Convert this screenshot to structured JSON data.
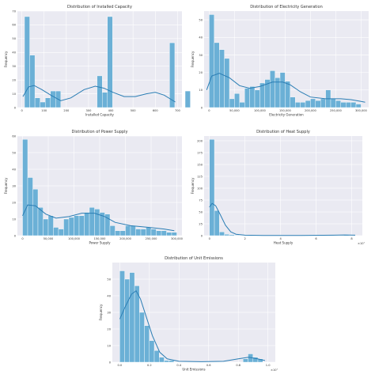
{
  "colors": {
    "plot_bg": "#eaeaf2",
    "grid": "#ffffff",
    "bar_fill": "#6bb0d6",
    "bar_edge": "#ffffff",
    "kde_line": "#2a7db4",
    "text": "#333333"
  },
  "chart_data": [
    {
      "type": "bar",
      "title": "Distribution of Installed Capacity",
      "xlabel": "Installed Capacity",
      "ylabel": "Frequency",
      "xlim": [
        -20,
        720
      ],
      "ylim": [
        0,
        70
      ],
      "xticks": [
        0,
        100,
        200,
        300,
        400,
        500,
        600,
        700
      ],
      "xtick_labels": [
        "0",
        "100",
        "200",
        "300",
        "400",
        "500",
        "600",
        "700"
      ],
      "yticks": [
        0,
        10,
        20,
        30,
        40,
        50,
        60,
        70
      ],
      "ytick_labels": [
        "0",
        "10",
        "20",
        "30",
        "40",
        "50",
        "60",
        "70"
      ],
      "grid": true,
      "bin_start": 12,
      "bin_width": 23.3,
      "values": [
        66,
        38,
        7,
        4,
        7,
        12,
        12,
        0,
        0,
        0,
        0,
        0,
        0,
        0,
        23,
        11,
        66,
        0,
        0,
        0,
        0,
        0,
        0,
        0,
        0,
        0,
        0,
        0,
        47,
        0,
        0,
        12
      ],
      "kde": [
        [
          5,
          8
        ],
        [
          30,
          15
        ],
        [
          55,
          16
        ],
        [
          90,
          13
        ],
        [
          130,
          9
        ],
        [
          175,
          5
        ],
        [
          220,
          7
        ],
        [
          280,
          13
        ],
        [
          330,
          15.5
        ],
        [
          370,
          14
        ],
        [
          410,
          11
        ],
        [
          460,
          8
        ],
        [
          510,
          8
        ],
        [
          560,
          10
        ],
        [
          600,
          11
        ],
        [
          640,
          9
        ],
        [
          670,
          6
        ],
        [
          690,
          4
        ]
      ]
    },
    {
      "type": "bar",
      "title": "Distribution of Electricity Generation",
      "xlabel": "Electricity Generation",
      "ylabel": "Frequency",
      "xlim": [
        -10000,
        315000
      ],
      "ylim": [
        0,
        55
      ],
      "xticks": [
        0,
        50000,
        100000,
        150000,
        200000,
        250000,
        300000
      ],
      "xtick_labels": [
        "0",
        "50,000",
        "100,000",
        "150,000",
        "200,000",
        "250,000",
        "300,000"
      ],
      "yticks": [
        0,
        10,
        20,
        30,
        40,
        50
      ],
      "ytick_labels": [
        "0",
        "10",
        "20",
        "30",
        "40",
        "50"
      ],
      "grid": true,
      "bin_start": 0,
      "bin_width": 10000,
      "values": [
        53,
        37,
        33,
        28,
        5,
        8,
        3,
        11,
        12,
        10,
        14,
        16,
        21,
        17,
        20,
        15,
        6,
        3,
        3,
        4,
        5,
        4,
        5,
        10,
        5,
        4,
        3,
        3,
        3,
        2
      ],
      "kde": [
        [
          -5000,
          10
        ],
        [
          5000,
          18
        ],
        [
          20000,
          19.5
        ],
        [
          40000,
          17
        ],
        [
          60000,
          12.5
        ],
        [
          80000,
          11
        ],
        [
          100000,
          12
        ],
        [
          125000,
          14.5
        ],
        [
          145000,
          14.5
        ],
        [
          160000,
          13
        ],
        [
          180000,
          9
        ],
        [
          200000,
          6
        ],
        [
          230000,
          5
        ],
        [
          260000,
          5
        ],
        [
          280000,
          4.5
        ],
        [
          300000,
          3.5
        ],
        [
          308000,
          3
        ]
      ]
    },
    {
      "type": "bar",
      "title": "Distribution of Power Supply",
      "xlabel": "Power Supply",
      "ylabel": "Frequency",
      "xlim": [
        -10000,
        310000
      ],
      "ylim": [
        0,
        60
      ],
      "xticks": [
        0,
        50000,
        100000,
        150000,
        200000,
        250000,
        300000
      ],
      "xtick_labels": [
        "0",
        "50,000",
        "100,000",
        "150,000",
        "200,000",
        "250,000",
        "300,000"
      ],
      "yticks": [
        0,
        10,
        20,
        30,
        40,
        50,
        60
      ],
      "ytick_labels": [
        "0",
        "10",
        "20",
        "30",
        "40",
        "50",
        "60"
      ],
      "grid": true,
      "bin_start": 0,
      "bin_width": 10000,
      "values": [
        58,
        35,
        28,
        17,
        10,
        12,
        5,
        4,
        10,
        11,
        12,
        12,
        14,
        17,
        16,
        14,
        13,
        6,
        3,
        3,
        6,
        6,
        4,
        4,
        5,
        4,
        3,
        3,
        2,
        2
      ],
      "kde": [
        [
          0,
          12
        ],
        [
          10000,
          18.5
        ],
        [
          25000,
          18
        ],
        [
          45000,
          13
        ],
        [
          65000,
          10.5
        ],
        [
          90000,
          11.5
        ],
        [
          115000,
          13.5
        ],
        [
          140000,
          13.5
        ],
        [
          160000,
          11.5
        ],
        [
          180000,
          8
        ],
        [
          210000,
          6
        ],
        [
          245000,
          5
        ],
        [
          275000,
          4
        ],
        [
          295000,
          3
        ]
      ]
    },
    {
      "type": "bar",
      "title": "Distribution of Heat Supply",
      "xlabel": "Heat Supply",
      "ylabel": "Frequency",
      "exponent_label": "×10⁷",
      "xlim": [
        -0.3,
        8.6
      ],
      "ylim": [
        0,
        210
      ],
      "xticks": [
        0,
        2,
        4,
        6,
        8
      ],
      "xtick_labels": [
        "0",
        "2",
        "4",
        "6",
        "8"
      ],
      "yticks": [
        0,
        25,
        50,
        75,
        100,
        125,
        150,
        175,
        200
      ],
      "ytick_labels": [
        "0",
        "25",
        "50",
        "75",
        "100",
        "125",
        "150",
        "175",
        "200"
      ],
      "grid": true,
      "bin_start": 0,
      "bin_width": 0.28,
      "values": [
        203,
        53,
        8,
        3,
        2,
        1,
        0,
        1,
        0,
        0,
        0,
        0,
        0,
        0,
        0,
        0,
        0,
        0,
        0,
        0,
        0,
        0,
        0,
        0,
        1,
        0,
        0,
        2,
        0,
        0
      ],
      "kde": [
        [
          0,
          60
        ],
        [
          0.15,
          68
        ],
        [
          0.35,
          63
        ],
        [
          0.6,
          45
        ],
        [
          0.9,
          22
        ],
        [
          1.2,
          8
        ],
        [
          1.5,
          3
        ],
        [
          2.0,
          1
        ],
        [
          3.0,
          0.5
        ],
        [
          5.0,
          0.4
        ],
        [
          7.0,
          1
        ],
        [
          7.6,
          1.5
        ],
        [
          8.2,
          1
        ]
      ]
    },
    {
      "type": "bar",
      "title": "Distribution of Unit Emissions",
      "xlabel": "Unit Emissions",
      "ylabel": "Frequency",
      "exponent_label": "×10⁷",
      "xlim": [
        -0.05,
        1.05
      ],
      "ylim": [
        0,
        60
      ],
      "xticks": [
        0.0,
        0.2,
        0.4,
        0.6,
        0.8,
        1.0
      ],
      "xtick_labels": [
        "0.0",
        "0.2",
        "0.4",
        "0.6",
        "0.8",
        "1.0"
      ],
      "yticks": [
        0,
        10,
        20,
        30,
        40,
        50
      ],
      "ytick_labels": [
        "0",
        "10",
        "20",
        "30",
        "40",
        "50"
      ],
      "grid": true,
      "bin_start": 0,
      "bin_width": 0.0333,
      "values": [
        55,
        50,
        54,
        46,
        30,
        22,
        13,
        7,
        3,
        1,
        1,
        0,
        0,
        0,
        0,
        0,
        0,
        0,
        0,
        0,
        0,
        0,
        0,
        0,
        0,
        2,
        5,
        3,
        2,
        0
      ],
      "kde": [
        [
          0,
          26
        ],
        [
          0.04,
          34
        ],
        [
          0.08,
          41
        ],
        [
          0.11,
          43
        ],
        [
          0.14,
          38
        ],
        [
          0.18,
          27
        ],
        [
          0.22,
          16
        ],
        [
          0.27,
          6
        ],
        [
          0.32,
          2
        ],
        [
          0.4,
          0.5
        ],
        [
          0.55,
          0.3
        ],
        [
          0.7,
          0.5
        ],
        [
          0.8,
          2
        ],
        [
          0.87,
          3
        ],
        [
          0.93,
          2
        ],
        [
          0.98,
          1
        ]
      ]
    }
  ]
}
